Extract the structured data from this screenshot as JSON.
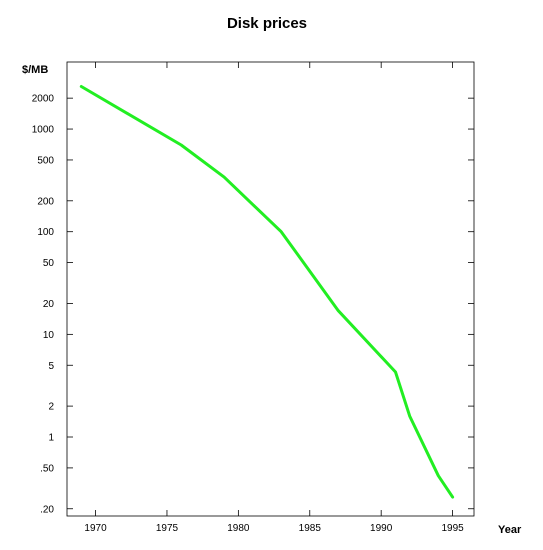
{
  "chart_data": {
    "type": "line",
    "title": "Disk prices",
    "xlabel": "Year",
    "ylabel": "$/MB",
    "yscale": "log",
    "xlim": [
      1968,
      1996.5
    ],
    "ylim": [
      0.17,
      4500
    ],
    "grid": false,
    "x_ticks": [
      {
        "value": 1970,
        "label": "1970"
      },
      {
        "value": 1975,
        "label": "1975"
      },
      {
        "value": 1980,
        "label": "1980"
      },
      {
        "value": 1985,
        "label": "1985"
      },
      {
        "value": 1990,
        "label": "1990"
      },
      {
        "value": 1995,
        "label": "1995"
      }
    ],
    "y_ticks": [
      {
        "value": 2000,
        "label": "2000"
      },
      {
        "value": 1000,
        "label": "1000"
      },
      {
        "value": 500,
        "label": "500"
      },
      {
        "value": 200,
        "label": "200"
      },
      {
        "value": 100,
        "label": "100"
      },
      {
        "value": 50,
        "label": "50"
      },
      {
        "value": 20,
        "label": "20"
      },
      {
        "value": 10,
        "label": "10"
      },
      {
        "value": 5,
        "label": "5"
      },
      {
        "value": 2,
        "label": "2"
      },
      {
        "value": 1,
        "label": "1"
      },
      {
        "value": 0.5,
        "label": ".50"
      },
      {
        "value": 0.2,
        "label": ".20"
      }
    ],
    "series": [
      {
        "color": "#22ee22",
        "points": [
          {
            "x": 1969,
            "y": 2600
          },
          {
            "x": 1976,
            "y": 700
          },
          {
            "x": 1979,
            "y": 340
          },
          {
            "x": 1983,
            "y": 100
          },
          {
            "x": 1987,
            "y": 17
          },
          {
            "x": 1991,
            "y": 4.3
          },
          {
            "x": 1992,
            "y": 1.6
          },
          {
            "x": 1994,
            "y": 0.42
          },
          {
            "x": 1995,
            "y": 0.26
          }
        ]
      }
    ]
  }
}
